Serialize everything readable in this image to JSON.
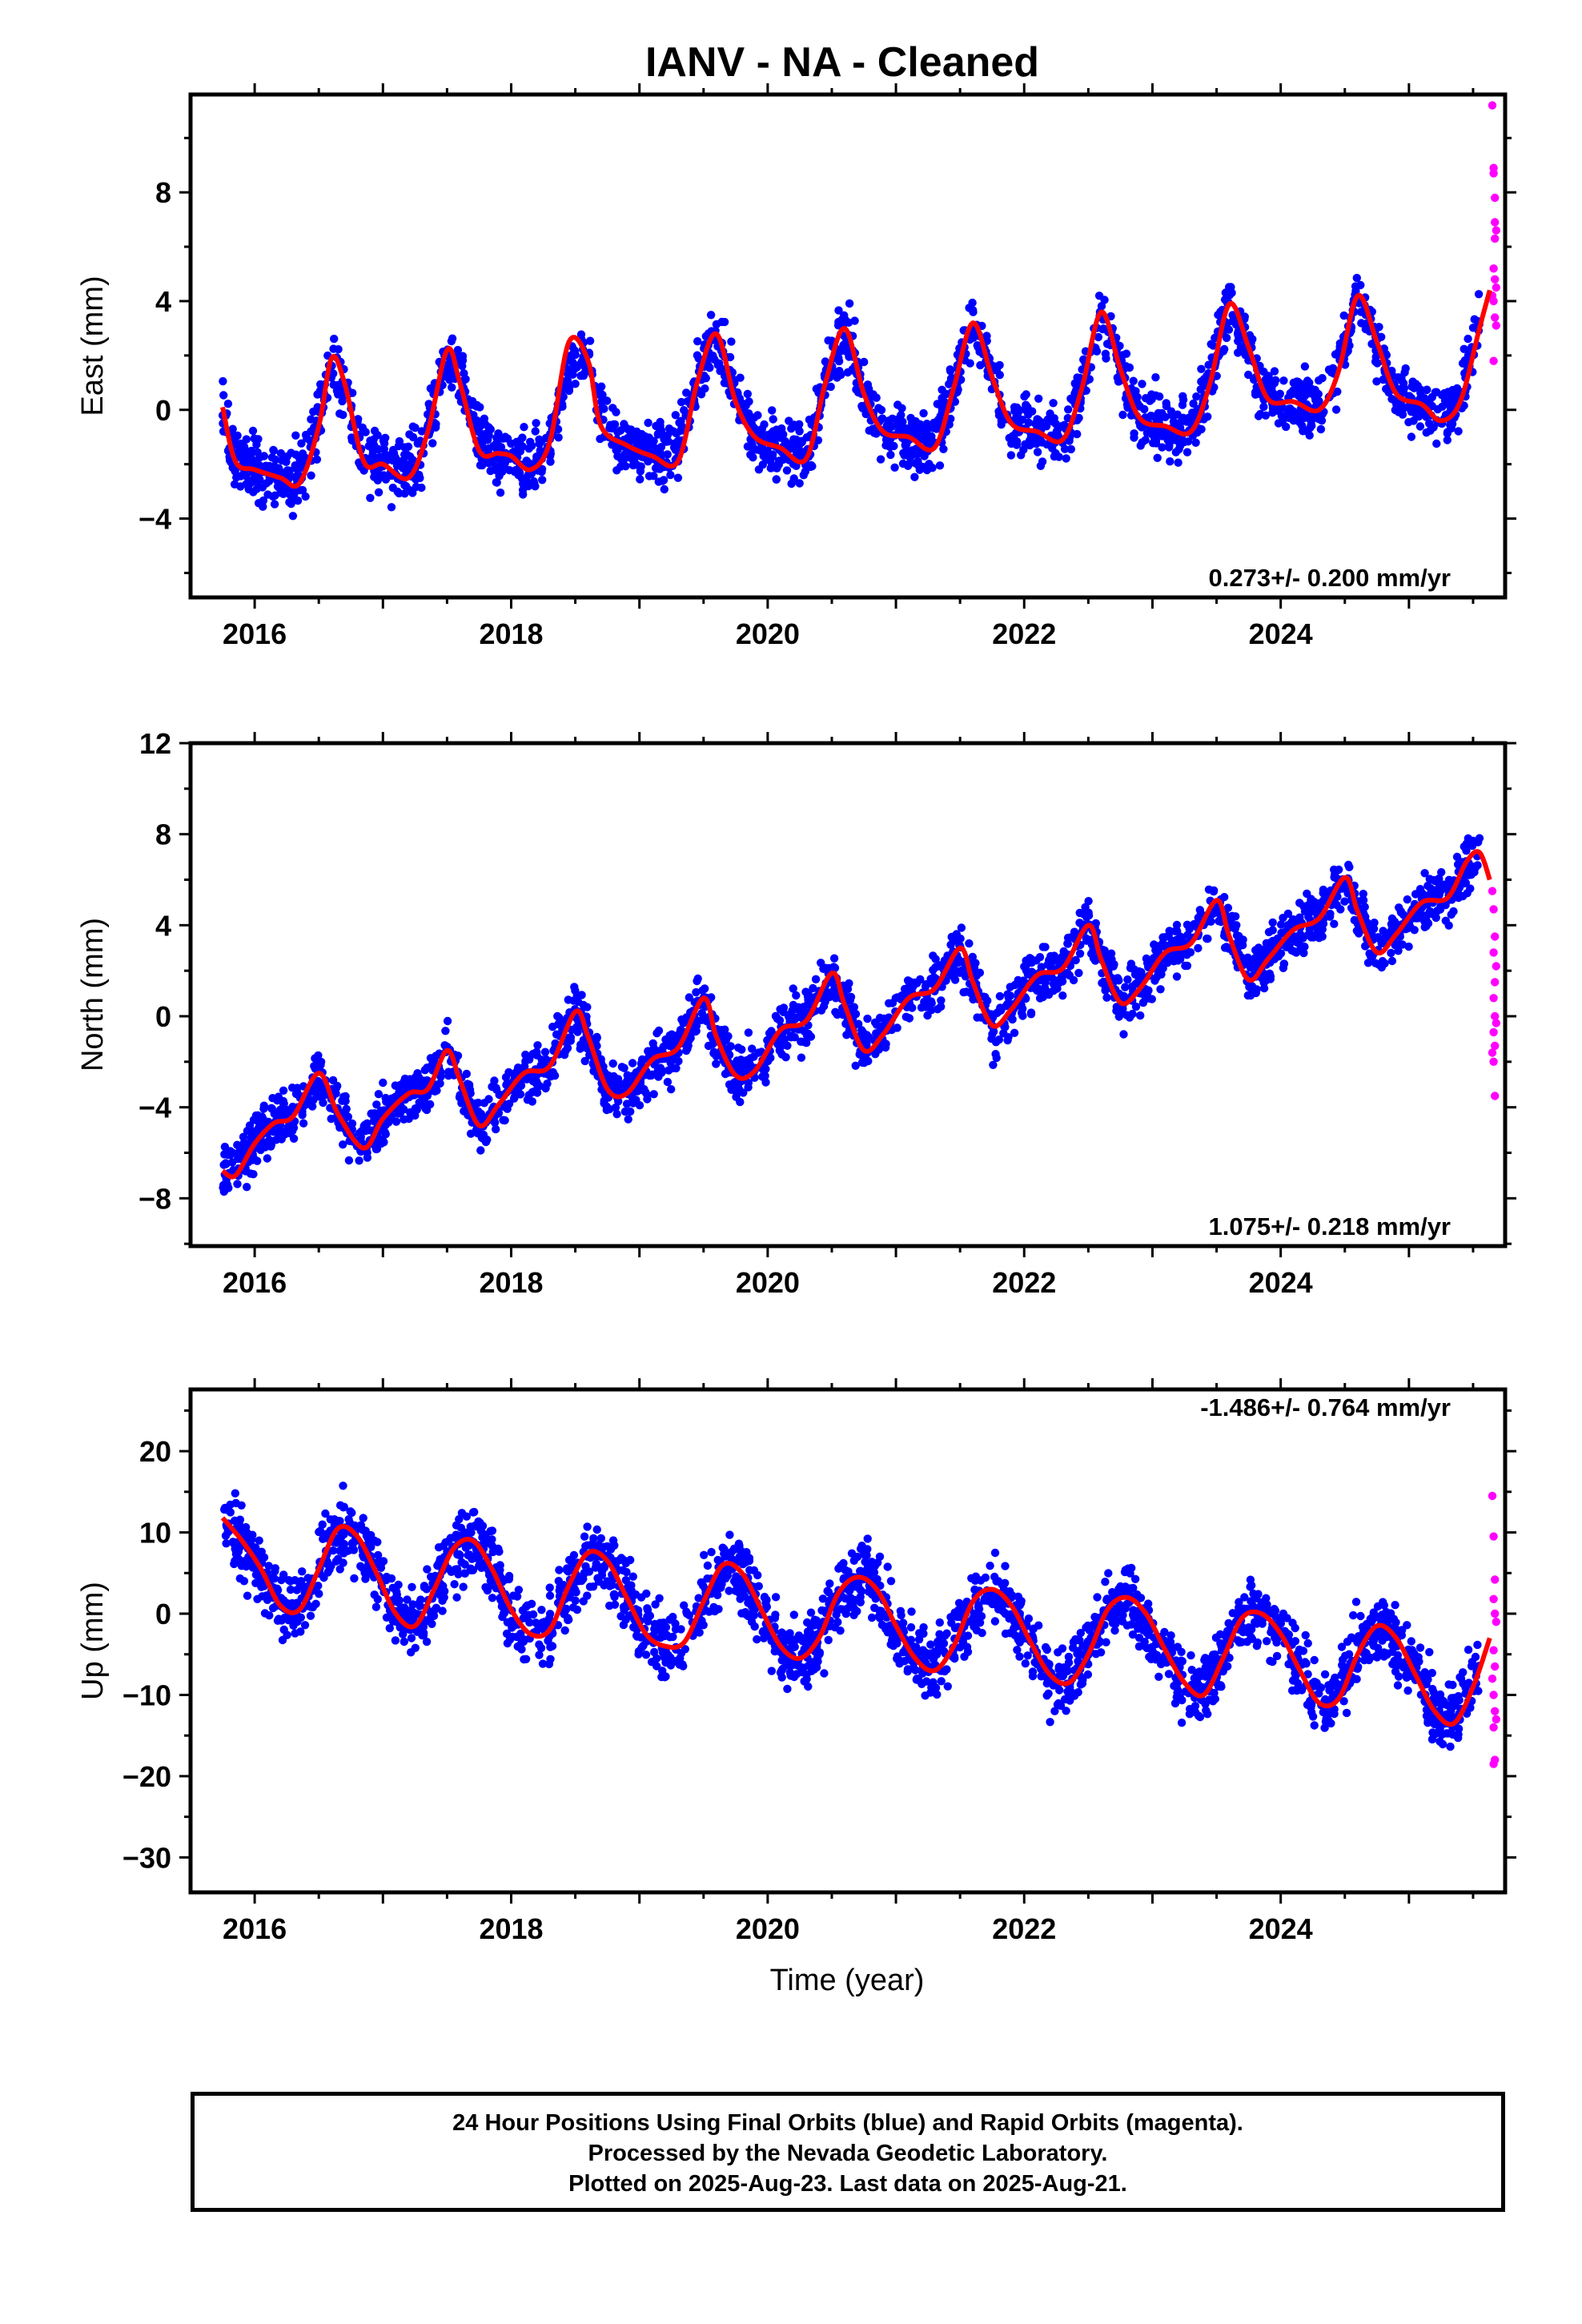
{
  "title": "IANV  - NA - Cleaned",
  "xlabel": "Time (year)",
  "footer": {
    "line1": "24 Hour Positions Using Final Orbits (blue) and Rapid Orbits (magenta).",
    "line2": "Processed by the Nevada Geodetic Laboratory.",
    "line3": "Plotted on 2025-Aug-23. Last data on 2025-Aug-21."
  },
  "colors": {
    "final": "#0000ff",
    "rapid": "#ff00ff",
    "fit": "#ff0000",
    "axis": "#000000"
  },
  "chart_data": [
    {
      "type": "scatter",
      "ylabel": "East (mm)",
      "rate_label": "0.273+/- 0.200 mm/yr",
      "xlim": [
        2015.5,
        2025.75
      ],
      "ylim": [
        -6.9,
        11.6
      ],
      "yticks": [
        -4,
        0,
        4,
        8
      ],
      "ytick_labels": [
        "−4",
        "0",
        "4",
        "8"
      ],
      "xticks": [
        2016,
        2018,
        2020,
        2022,
        2024
      ],
      "xtick_labels": [
        "2016",
        "2018",
        "2020",
        "2022",
        "2024"
      ],
      "series": [
        {
          "role": "fit",
          "x": [
            2015.75,
            2015.85,
            2016.0,
            2016.2,
            2016.35,
            2016.5,
            2016.6,
            2016.7,
            2016.85,
            2017.0,
            2017.2,
            2017.35,
            2017.5,
            2017.6,
            2017.75,
            2017.9,
            2018.0,
            2018.15,
            2018.3,
            2018.45,
            2018.6,
            2018.7,
            2018.9,
            2019.1,
            2019.3,
            2019.45,
            2019.6,
            2019.75,
            2019.9,
            2020.1,
            2020.3,
            2020.45,
            2020.6,
            2020.75,
            2020.9,
            2021.1,
            2021.3,
            2021.45,
            2021.6,
            2021.75,
            2021.9,
            2022.1,
            2022.3,
            2022.45,
            2022.6,
            2022.75,
            2022.9,
            2023.1,
            2023.3,
            2023.45,
            2023.6,
            2023.75,
            2023.9,
            2024.1,
            2024.3,
            2024.45,
            2024.6,
            2024.75,
            2024.9,
            2025.1,
            2025.25,
            2025.4,
            2025.55,
            2025.63
          ],
          "y": [
            0.1,
            -1.9,
            -2.2,
            -2.5,
            -2.7,
            -0.6,
            1.9,
            1.0,
            -1.9,
            -2.0,
            -2.5,
            -0.8,
            2.2,
            1.0,
            -1.5,
            -1.6,
            -1.7,
            -2.2,
            -1.2,
            2.5,
            1.8,
            -0.6,
            -1.3,
            -1.7,
            -1.9,
            1.0,
            2.8,
            0.3,
            -1.0,
            -1.4,
            -1.8,
            1.0,
            3.0,
            0.6,
            -0.8,
            -1.0,
            -1.4,
            0.8,
            3.2,
            1.2,
            -0.5,
            -0.8,
            -1.1,
            0.8,
            3.6,
            1.5,
            -0.3,
            -0.6,
            -0.8,
            1.0,
            3.9,
            2.3,
            0.4,
            0.3,
            0.0,
            1.4,
            4.2,
            2.5,
            0.6,
            0.2,
            -0.4,
            0.3,
            3.0,
            4.4
          ]
        },
        {
          "role": "final",
          "base": [
            2015.75,
            2016.0,
            2016.3,
            2016.6,
            2016.85,
            2017.1,
            2017.35,
            2017.6,
            2017.85,
            2018.1,
            2018.35,
            2018.6,
            2018.85,
            2019.1,
            2019.35,
            2019.6,
            2019.85,
            2020.1,
            2020.35,
            2020.6,
            2020.85,
            2021.1,
            2021.35,
            2021.6,
            2021.85,
            2022.1,
            2022.35,
            2022.6,
            2022.85,
            2023.1,
            2023.35,
            2023.6,
            2023.85,
            2024.1,
            2024.35,
            2024.6,
            2024.85,
            2025.1,
            2025.35,
            2025.55
          ],
          "baseY": [
            0.1,
            -2.2,
            -2.7,
            1.9,
            -1.9,
            -2.0,
            -1.0,
            2.2,
            -1.6,
            -1.9,
            -1.5,
            2.5,
            -1.3,
            -1.7,
            0.5,
            2.8,
            -1.0,
            -1.5,
            -0.5,
            3.0,
            -0.8,
            -1.1,
            -0.5,
            3.2,
            -0.5,
            -0.9,
            -0.5,
            3.6,
            -0.3,
            -0.7,
            -0.2,
            3.9,
            0.4,
            0.2,
            0.3,
            4.2,
            0.6,
            0.1,
            -0.2,
            3.5
          ],
          "spread": 1.6,
          "n": 2400
        },
        {
          "role": "rapid",
          "x": [
            2025.65,
            2025.66,
            2025.66,
            2025.67,
            2025.67,
            2025.68,
            2025.66,
            2025.67,
            2025.68,
            2025.65,
            2025.66,
            2025.67,
            2025.68,
            2025.66,
            2025.67
          ],
          "y": [
            11.2,
            8.9,
            8.7,
            7.8,
            6.9,
            6.6,
            5.2,
            4.8,
            4.5,
            4.2,
            4.0,
            3.4,
            3.1,
            1.8,
            6.3
          ]
        }
      ]
    },
    {
      "type": "scatter",
      "ylabel": "North (mm)",
      "rate_label": "1.075+/- 0.218 mm/yr",
      "xlim": [
        2015.5,
        2025.75
      ],
      "ylim": [
        -10.1,
        12.0
      ],
      "yticks": [
        -8,
        -4,
        0,
        4,
        8,
        12
      ],
      "ytick_labels": [
        "−8",
        "−4",
        "0",
        "4",
        "8",
        "12"
      ],
      "xticks": [
        2016,
        2018,
        2020,
        2022,
        2024
      ],
      "xtick_labels": [
        "2016",
        "2018",
        "2020",
        "2022",
        "2024"
      ],
      "series": [
        {
          "role": "fit",
          "x": [
            2015.75,
            2015.85,
            2016.0,
            2016.15,
            2016.3,
            2016.5,
            2016.65,
            2016.85,
            2017.0,
            2017.2,
            2017.35,
            2017.5,
            2017.6,
            2017.75,
            2017.9,
            2018.1,
            2018.3,
            2018.5,
            2018.6,
            2018.75,
            2018.9,
            2019.1,
            2019.3,
            2019.5,
            2019.6,
            2019.75,
            2019.9,
            2020.1,
            2020.3,
            2020.5,
            2020.6,
            2020.75,
            2020.9,
            2021.1,
            2021.3,
            2021.5,
            2021.6,
            2021.75,
            2021.9,
            2022.1,
            2022.3,
            2022.5,
            2022.6,
            2022.75,
            2022.9,
            2023.1,
            2023.3,
            2023.5,
            2023.6,
            2023.75,
            2023.9,
            2024.1,
            2024.3,
            2024.5,
            2024.6,
            2024.75,
            2024.9,
            2025.1,
            2025.3,
            2025.45,
            2025.55,
            2025.63
          ],
          "y": [
            -6.8,
            -7.0,
            -5.6,
            -4.7,
            -4.4,
            -2.5,
            -4.3,
            -5.8,
            -4.5,
            -3.4,
            -3.2,
            -1.5,
            -2.8,
            -4.8,
            -3.9,
            -2.5,
            -2.2,
            0.2,
            -0.9,
            -3.2,
            -3.4,
            -1.9,
            -1.4,
            0.8,
            -0.9,
            -2.6,
            -2.4,
            -0.6,
            -0.2,
            1.9,
            0.5,
            -1.5,
            -0.8,
            0.8,
            1.2,
            3.0,
            1.5,
            -0.4,
            0.3,
            1.8,
            2.1,
            4.0,
            2.5,
            0.6,
            1.2,
            2.8,
            3.2,
            5.1,
            3.5,
            1.6,
            2.5,
            3.8,
            4.3,
            6.1,
            4.6,
            2.8,
            3.6,
            5.0,
            5.2,
            6.8,
            7.2,
            6.0
          ]
        },
        {
          "role": "final",
          "base": [
            2015.75,
            2016.0,
            2016.25,
            2016.5,
            2016.75,
            2017.0,
            2017.25,
            2017.5,
            2017.75,
            2018.0,
            2018.25,
            2018.5,
            2018.75,
            2019.0,
            2019.25,
            2019.5,
            2019.75,
            2020.0,
            2020.25,
            2020.5,
            2020.75,
            2021.0,
            2021.25,
            2021.5,
            2021.75,
            2022.0,
            2022.25,
            2022.5,
            2022.75,
            2023.0,
            2023.25,
            2023.5,
            2023.75,
            2024.0,
            2024.25,
            2024.5,
            2024.75,
            2025.0,
            2025.25,
            2025.55
          ],
          "baseY": [
            -6.8,
            -5.6,
            -4.5,
            -2.5,
            -5.0,
            -4.5,
            -3.3,
            -1.5,
            -4.6,
            -3.0,
            -2.2,
            0.2,
            -3.0,
            -2.8,
            -1.4,
            0.8,
            -2.5,
            -1.2,
            -0.2,
            1.9,
            -1.4,
            0.2,
            1.2,
            3.0,
            -0.3,
            1.2,
            2.1,
            4.0,
            0.8,
            2.2,
            3.2,
            5.1,
            1.8,
            3.2,
            4.3,
            6.1,
            3.0,
            4.5,
            5.2,
            6.5
          ],
          "spread": 1.7,
          "n": 2400
        },
        {
          "role": "rapid",
          "x": [
            2025.65,
            2025.66,
            2025.67,
            2025.66,
            2025.68,
            2025.67,
            2025.66,
            2025.67,
            2025.68,
            2025.66,
            2025.67,
            2025.65,
            2025.66,
            2025.67
          ],
          "y": [
            5.5,
            4.7,
            3.5,
            2.8,
            2.2,
            1.5,
            0.8,
            0.0,
            -0.3,
            -0.7,
            -1.3,
            -1.6,
            -2.0,
            -3.5
          ]
        }
      ]
    },
    {
      "type": "scatter",
      "ylabel": "Up (mm)",
      "rate_label": "-1.486+/- 0.764 mm/yr",
      "xlim": [
        2015.5,
        2025.75
      ],
      "ylim": [
        -34.3,
        27.6
      ],
      "yticks": [
        -30,
        -20,
        -10,
        0,
        10,
        20
      ],
      "ytick_labels": [
        "−30",
        "−20",
        "−10",
        "0",
        "10",
        "20"
      ],
      "xticks": [
        2016,
        2018,
        2020,
        2022,
        2024
      ],
      "xtick_labels": [
        "2016",
        "2018",
        "2020",
        "2022",
        "2024"
      ],
      "series": [
        {
          "role": "fit",
          "x": [
            2015.75,
            2015.9,
            2016.05,
            2016.2,
            2016.35,
            2016.5,
            2016.65,
            2016.8,
            2016.95,
            2017.1,
            2017.25,
            2017.4,
            2017.55,
            2017.7,
            2017.85,
            2018.0,
            2018.15,
            2018.3,
            2018.45,
            2018.6,
            2018.75,
            2018.9,
            2019.05,
            2019.2,
            2019.35,
            2019.5,
            2019.65,
            2019.8,
            2019.95,
            2020.1,
            2020.25,
            2020.4,
            2020.55,
            2020.7,
            2020.85,
            2021.0,
            2021.15,
            2021.3,
            2021.45,
            2021.6,
            2021.75,
            2021.9,
            2022.05,
            2022.2,
            2022.35,
            2022.5,
            2022.65,
            2022.8,
            2022.95,
            2023.1,
            2023.25,
            2023.4,
            2023.55,
            2023.7,
            2023.85,
            2024.0,
            2024.15,
            2024.3,
            2024.45,
            2024.6,
            2024.75,
            2024.9,
            2025.05,
            2025.2,
            2025.35,
            2025.5,
            2025.63
          ],
          "y": [
            11.8,
            9.0,
            5.5,
            1.0,
            0.5,
            5.5,
            10.5,
            9.5,
            5.0,
            0.0,
            -1.5,
            3.0,
            8.0,
            9.0,
            5.5,
            0.5,
            -2.5,
            -2.0,
            3.5,
            7.5,
            6.5,
            2.0,
            -2.5,
            -4.0,
            -3.5,
            1.5,
            6.0,
            5.0,
            0.5,
            -4.0,
            -5.5,
            -3.0,
            2.5,
            4.5,
            3.0,
            -1.5,
            -5.5,
            -7.0,
            -4.0,
            1.5,
            3.0,
            1.0,
            -3.5,
            -7.5,
            -8.5,
            -5.0,
            0.5,
            2.0,
            0.0,
            -4.5,
            -8.5,
            -10.0,
            -5.5,
            -0.5,
            0.0,
            -2.5,
            -7.0,
            -11.0,
            -10.5,
            -5.0,
            -1.5,
            -3.0,
            -7.5,
            -12.0,
            -13.5,
            -9.0,
            -3.0
          ]
        },
        {
          "role": "final",
          "base": [
            2015.75,
            2016.0,
            2016.25,
            2016.5,
            2016.75,
            2017.0,
            2017.25,
            2017.5,
            2017.75,
            2018.0,
            2018.25,
            2018.5,
            2018.75,
            2019.0,
            2019.25,
            2019.5,
            2019.75,
            2020.0,
            2020.25,
            2020.5,
            2020.75,
            2021.0,
            2021.25,
            2021.5,
            2021.75,
            2022.0,
            2022.25,
            2022.5,
            2022.75,
            2023.0,
            2023.25,
            2023.5,
            2023.75,
            2024.0,
            2024.25,
            2024.5,
            2024.75,
            2025.0,
            2025.25,
            2025.55
          ],
          "baseY": [
            11.8,
            6.5,
            0.5,
            5.5,
            10.5,
            5.0,
            -1.0,
            5.5,
            8.5,
            1.5,
            -2.5,
            3.0,
            7.0,
            -1.0,
            -4.0,
            1.0,
            5.5,
            -2.0,
            -6.0,
            0.0,
            4.5,
            -2.5,
            -7.0,
            -1.0,
            3.0,
            -3.5,
            -8.5,
            -2.0,
            2.0,
            -4.0,
            -10.0,
            -4.0,
            0.0,
            -2.0,
            -11.0,
            -4.5,
            -1.5,
            -7.0,
            -13.0,
            -5.0
          ],
          "spread": 6.0,
          "n": 2400
        },
        {
          "role": "rapid",
          "x": [
            2025.65,
            2025.66,
            2025.67,
            2025.66,
            2025.67,
            2025.68,
            2025.66,
            2025.67,
            2025.65,
            2025.66,
            2025.67,
            2025.68,
            2025.66,
            2025.67,
            2025.66
          ],
          "y": [
            14.5,
            9.5,
            4.2,
            1.8,
            0.0,
            -1.0,
            -4.5,
            -6.5,
            -8.0,
            -10.0,
            -12.0,
            -13.0,
            -14.0,
            -18.0,
            -18.5
          ]
        }
      ]
    }
  ]
}
